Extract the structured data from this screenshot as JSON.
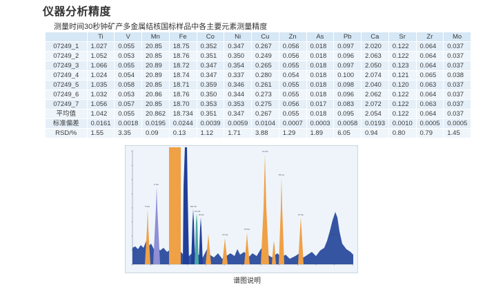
{
  "page": {
    "title": "仪器分析精度",
    "subtitle": "测量时间30秒钟矿产多金属结核国标样品中各主要元素测量精度",
    "caption": "谱图说明"
  },
  "table": {
    "headers": [
      "",
      "Ti",
      "V",
      "Mn",
      "Fe",
      "Co",
      "Ni",
      "Cu",
      "Zn",
      "As",
      "Pb",
      "Ca",
      "Sr",
      "Zr",
      "Mo"
    ],
    "rows": [
      [
        "07249_1",
        "1.027",
        "0.055",
        "20.85",
        "18.75",
        "0.352",
        "0.347",
        "0.267",
        "0.056",
        "0.018",
        "0.097",
        "2.020",
        "0.122",
        "0.064",
        "0.037"
      ],
      [
        "07249_2",
        "1.052",
        "0.053",
        "20.85",
        "18.76",
        "0.351",
        "0.350",
        "0.249",
        "0.056",
        "0.018",
        "0.096",
        "2.063",
        "0.122",
        "0.064",
        "0.037"
      ],
      [
        "07249_3",
        "1.066",
        "0.055",
        "20.89",
        "18.72",
        "0.347",
        "0.354",
        "0.265",
        "0.055",
        "0.018",
        "0.097",
        "2.050",
        "0.123",
        "0.064",
        "0.037"
      ],
      [
        "07249_4",
        "1.024",
        "0.054",
        "20.89",
        "18.74",
        "0.347",
        "0.337",
        "0.280",
        "0.054",
        "0.018",
        "0.100",
        "2.074",
        "0.121",
        "0.065",
        "0.038"
      ],
      [
        "07249_5",
        "1.035",
        "0.058",
        "20.85",
        "18.71",
        "0.359",
        "0.346",
        "0.261",
        "0.055",
        "0.018",
        "0.098",
        "2.040",
        "0.120",
        "0.063",
        "0.037"
      ],
      [
        "07249_6",
        "1.032",
        "0.053",
        "20.86",
        "18.76",
        "0.350",
        "0.344",
        "0.273",
        "0.055",
        "0.018",
        "0.096",
        "2.062",
        "0.122",
        "0.064",
        "0.037"
      ],
      [
        "07249_7",
        "1.056",
        "0.057",
        "20.85",
        "18.70",
        "0.353",
        "0.353",
        "0.275",
        "0.056",
        "0.017",
        "0.083",
        "2.072",
        "0.122",
        "0.063",
        "0.037"
      ],
      [
        "平均值",
        "1.042",
        "0.055",
        "20.862",
        "18.734",
        "0.351",
        "0.347",
        "0.267",
        "0.055",
        "0.018",
        "0.095",
        "2.054",
        "0.122",
        "0.064",
        "0.037"
      ],
      [
        "标准偏差",
        "0.0161",
        "0.0018",
        "0.0195",
        "0.0244",
        "0.0039",
        "0.0059",
        "0.0104",
        "0.0007",
        "0.0003",
        "0.0058",
        "0.0193",
        "0.0010",
        "0.0005",
        "0.0005"
      ],
      [
        "RSD/%",
        "1.55",
        "3.35",
        "0.09",
        "0.13",
        "1.12",
        "1.71",
        "3.88",
        "1.29",
        "1.89",
        "6.05",
        "0.94",
        "0.80",
        "0.79",
        "1.45"
      ]
    ]
  },
  "spectrum": {
    "colors": {
      "background": "#eef4fa",
      "baseline": "#25459a",
      "peak_orange": "#f0a045",
      "peak_purple": "#8f8fd6",
      "peak_navy": "#1f3f9a",
      "peak_teal": "#4aa8a0"
    }
  }
}
